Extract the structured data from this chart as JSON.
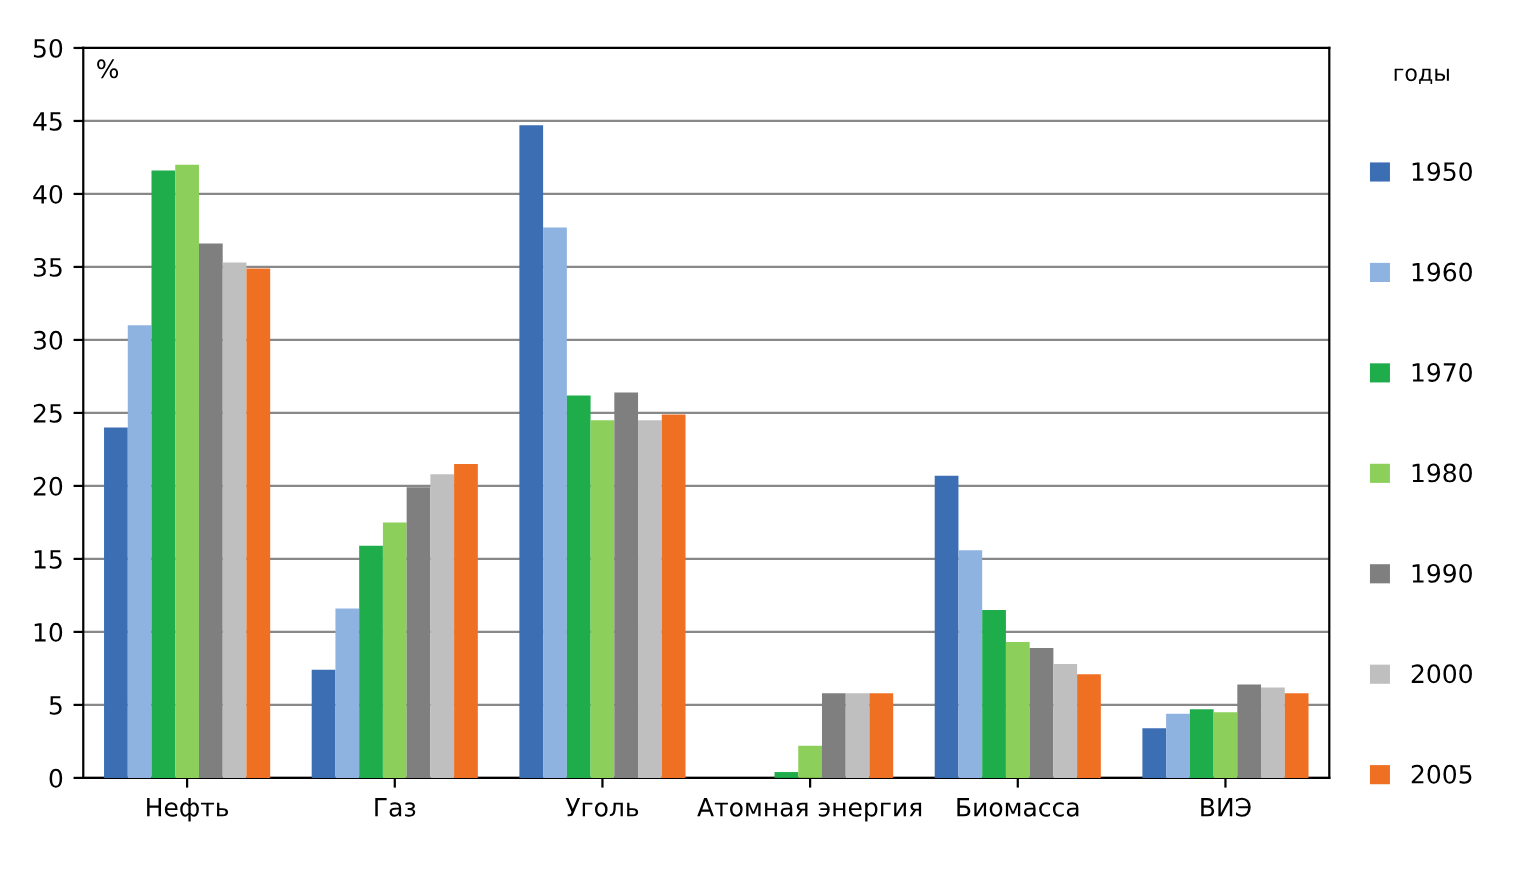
{
  "chart_data": {
    "type": "bar",
    "ylabel": "%",
    "legend_title": "годы",
    "categories": [
      "Нефть",
      "Газ",
      "Уголь",
      "Атомная энергия",
      "Биомасса",
      "ВИЭ"
    ],
    "series": [
      {
        "name": "1950",
        "color": "#3c6eb4",
        "values": [
          24.0,
          7.4,
          44.7,
          0,
          20.7,
          3.4
        ]
      },
      {
        "name": "1960",
        "color": "#8fb3e0",
        "values": [
          31.0,
          11.6,
          37.7,
          0,
          15.6,
          4.4
        ]
      },
      {
        "name": "1970",
        "color": "#1fad4b",
        "values": [
          41.6,
          15.9,
          26.2,
          0.4,
          11.5,
          4.7
        ]
      },
      {
        "name": "1980",
        "color": "#8ccf5a",
        "values": [
          42.0,
          17.5,
          24.5,
          2.2,
          9.3,
          4.5
        ]
      },
      {
        "name": "1990",
        "color": "#7f7f7f",
        "values": [
          36.6,
          19.9,
          26.4,
          5.8,
          8.9,
          6.4
        ]
      },
      {
        "name": "2000",
        "color": "#bfbfbf",
        "values": [
          35.3,
          20.8,
          24.5,
          5.8,
          7.8,
          6.2
        ]
      },
      {
        "name": "2005",
        "color": "#f07023",
        "values": [
          34.9,
          21.5,
          24.9,
          5.8,
          7.1,
          5.8
        ]
      }
    ],
    "ylim": [
      0,
      50
    ],
    "yticks": [
      0,
      5,
      10,
      15,
      20,
      25,
      30,
      35,
      40,
      45,
      50
    ],
    "grid": "y",
    "legend": "right"
  }
}
